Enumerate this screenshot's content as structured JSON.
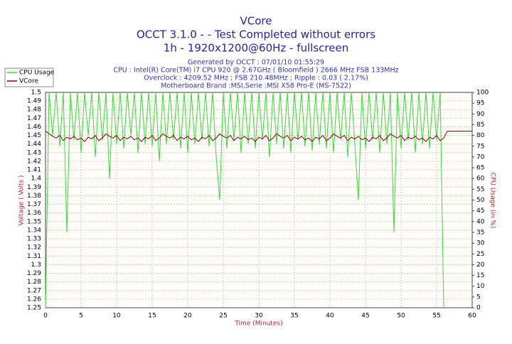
{
  "chart_data": {
    "type": "line",
    "title": "VCore",
    "subtitle": [
      "OCCT 3.1.0 -  - Test Completed without errors",
      "1h - 1920x1200@60Hz - fullscreen"
    ],
    "info": [
      "Generated by OCCT : 07/01/10 01:55:29",
      "CPU : Intel(R) Core(TM) i7 CPU 920 @ 2.67GHz ( Bloomfield ) 2666 MHz FSB 133MHz",
      "Overclock : 4209.52 MHz ; FSB 210.48MHz ; Ripple : 0.03 ( 2.17%)",
      "Motherboard Brand :MSI,Serie :MSI X58 Pro-E (MS-7522)"
    ],
    "xlabel": "Time (Minutes)",
    "ylabel": "Voltage ( Volts )",
    "y2label": "CPU Usage (in %)",
    "x": [
      0,
      0.5,
      1,
      1.5,
      2,
      2.5,
      3,
      3.5,
      4,
      4.5,
      5,
      5.5,
      6,
      6.5,
      7,
      7.5,
      8,
      8.5,
      9,
      9.5,
      10,
      10.5,
      11,
      11.5,
      12,
      12.5,
      13,
      13.5,
      14,
      14.5,
      15,
      15.5,
      16,
      16.5,
      17,
      17.5,
      18,
      18.5,
      19,
      19.5,
      20,
      20.5,
      21,
      21.5,
      22,
      22.5,
      23,
      23.5,
      24,
      24.5,
      25,
      25.5,
      26,
      26.5,
      27,
      27.5,
      28,
      28.5,
      29,
      29.5,
      30,
      30.5,
      31,
      31.5,
      32,
      32.5,
      33,
      33.5,
      34,
      34.5,
      35,
      35.5,
      36,
      36.5,
      37,
      37.5,
      38,
      38.5,
      39,
      39.5,
      40,
      40.5,
      41,
      41.5,
      42,
      42.5,
      43,
      43.5,
      44,
      44.5,
      45,
      45.5,
      46,
      46.5,
      47,
      47.5,
      48,
      48.5,
      49,
      49.5,
      50,
      50.5,
      51,
      51.5,
      52,
      52.5,
      53,
      53.5,
      54,
      54.5,
      55,
      55.5,
      56,
      56.5,
      57,
      57.5,
      58,
      58.5,
      59,
      59.5,
      60
    ],
    "series": [
      {
        "name": "CPU Usage",
        "color": "#33dd33",
        "axis": "y2",
        "values": [
          0,
          100,
          80,
          100,
          75,
          100,
          35,
          100,
          78,
          100,
          72,
          100,
          80,
          100,
          70,
          100,
          78,
          100,
          60,
          100,
          76,
          100,
          74,
          100,
          80,
          100,
          72,
          100,
          76,
          100,
          75,
          100,
          68,
          100,
          76,
          100,
          78,
          100,
          74,
          100,
          72,
          100,
          76,
          100,
          78,
          100,
          75,
          100,
          70,
          50,
          100,
          74,
          100,
          78,
          100,
          72,
          100,
          76,
          100,
          74,
          100,
          78,
          100,
          70,
          100,
          76,
          100,
          74,
          100,
          72,
          100,
          78,
          100,
          75,
          100,
          73,
          100,
          76,
          100,
          74,
          100,
          72,
          100,
          78,
          100,
          70,
          100,
          76,
          50,
          100,
          74,
          100,
          78,
          100,
          72,
          100,
          76,
          100,
          35,
          100,
          74,
          100,
          78,
          100,
          72,
          100,
          76,
          100,
          74,
          100,
          78,
          100,
          0,
          null,
          null,
          null,
          null,
          null,
          null,
          null,
          null
        ]
      },
      {
        "name": "VCore",
        "color": "#8b0000",
        "values": [
          1.455,
          1.452,
          1.449,
          1.447,
          1.45,
          1.444,
          1.448,
          1.446,
          1.449,
          1.445,
          1.447,
          1.443,
          1.448,
          1.446,
          1.45,
          1.444,
          1.447,
          1.452,
          1.449,
          1.447,
          1.45,
          1.444,
          1.448,
          1.446,
          1.449,
          1.445,
          1.447,
          1.443,
          1.448,
          1.446,
          1.45,
          1.444,
          1.447,
          1.452,
          1.449,
          1.447,
          1.45,
          1.444,
          1.448,
          1.446,
          1.449,
          1.445,
          1.447,
          1.443,
          1.448,
          1.446,
          1.45,
          1.444,
          1.447,
          1.452,
          1.449,
          1.447,
          1.45,
          1.444,
          1.448,
          1.446,
          1.449,
          1.445,
          1.447,
          1.443,
          1.448,
          1.446,
          1.45,
          1.444,
          1.447,
          1.452,
          1.449,
          1.447,
          1.45,
          1.444,
          1.448,
          1.446,
          1.449,
          1.445,
          1.447,
          1.443,
          1.448,
          1.446,
          1.45,
          1.444,
          1.447,
          1.452,
          1.449,
          1.447,
          1.45,
          1.444,
          1.448,
          1.446,
          1.449,
          1.445,
          1.447,
          1.443,
          1.448,
          1.446,
          1.45,
          1.444,
          1.447,
          1.452,
          1.449,
          1.447,
          1.45,
          1.444,
          1.448,
          1.446,
          1.449,
          1.445,
          1.447,
          1.443,
          1.448,
          1.446,
          1.45,
          1.444,
          1.447,
          1.455,
          1.455,
          1.455,
          1.455,
          1.455,
          1.455,
          1.455,
          1.455
        ]
      }
    ],
    "xlim": [
      0,
      60
    ],
    "xticks": [
      0,
      5,
      10,
      15,
      20,
      25,
      30,
      35,
      40,
      45,
      50,
      55,
      60
    ],
    "ylim": [
      1.25,
      1.5
    ],
    "yticks": [
      1.25,
      1.26,
      1.27,
      1.28,
      1.29,
      1.3,
      1.31,
      1.32,
      1.33,
      1.34,
      1.35,
      1.36,
      1.37,
      1.38,
      1.39,
      1.4,
      1.41,
      1.42,
      1.43,
      1.44,
      1.45,
      1.46,
      1.47,
      1.48,
      1.49,
      1.5
    ],
    "y2lim": [
      0,
      100
    ],
    "y2ticks": [
      0,
      5,
      10,
      15,
      20,
      25,
      30,
      35,
      40,
      45,
      50,
      55,
      60,
      65,
      70,
      75,
      80,
      85,
      90,
      95,
      100
    ],
    "grid": true
  }
}
